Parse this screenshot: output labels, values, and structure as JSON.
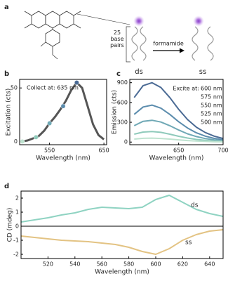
{
  "schematic": {
    "panel": "a",
    "pairs_label": [
      "25",
      "base",
      "pairs"
    ],
    "arrow_label": "formamide",
    "ds_label": "ds",
    "ss_label": "ss"
  },
  "chart_data": [
    {
      "type": "line",
      "panel": "b",
      "x_label": "Wavelength (nm)",
      "y_label": "Excitation (cts)",
      "annotations": [
        "Collect at: 635 nm"
      ],
      "xlim": [
        495,
        655
      ],
      "xticks": [
        550,
        650
      ],
      "ylim": [
        -3,
        58
      ],
      "yticks": [
        0,
        50
      ],
      "x": [
        500,
        510,
        520,
        530,
        540,
        550,
        560,
        570,
        580,
        590,
        600,
        610,
        620,
        630,
        640,
        650
      ],
      "series": [
        {
          "color": "#555555",
          "values": [
            0,
            1,
            3,
            5,
            10,
            17,
            23,
            30,
            38,
            48,
            55,
            50,
            33,
            16,
            6,
            2
          ]
        },
        {
          "style": "markers",
          "x": [
            500,
            525,
            550,
            575,
            600
          ],
          "values": [
            0,
            4,
            17,
            33,
            55
          ],
          "colors": [
            "#bfe3d0",
            "#8fcabb",
            "#6fa8b5",
            "#5b8cad",
            "#4a6a94"
          ]
        }
      ]
    },
    {
      "type": "line",
      "panel": "c",
      "x_label": "Wavelength (nm)",
      "y_label": "Emission (cts)",
      "legend_title": "Excite at:",
      "xlim": [
        595,
        700
      ],
      "xticks": [
        650,
        700
      ],
      "ylim": [
        -40,
        950
      ],
      "yticks": [
        0,
        300,
        600,
        900
      ],
      "x": [
        600,
        610,
        620,
        630,
        640,
        650,
        660,
        670,
        680,
        690,
        700
      ],
      "series": [
        {
          "name": "600 nm",
          "color": "#4a6a94",
          "values": [
            675,
            855,
            900,
            828,
            675,
            495,
            342,
            225,
            144,
            90,
            54
          ]
        },
        {
          "name": "575 nm",
          "color": "#5b8cad",
          "values": [
            420,
            532,
            560,
            515,
            420,
            308,
            213,
            140,
            90,
            56,
            34
          ]
        },
        {
          "name": "550 nm",
          "color": "#6fa8b5",
          "values": [
            248,
            314,
            330,
            304,
            248,
            182,
            125,
            83,
            53,
            33,
            20
          ]
        },
        {
          "name": "525 nm",
          "color": "#8fcabb",
          "values": [
            120,
            152,
            160,
            147,
            120,
            88,
            61,
            40,
            26,
            16,
            10
          ]
        },
        {
          "name": "500 nm",
          "color": "#bfe3d0",
          "values": [
            45,
            57,
            60,
            55,
            45,
            33,
            23,
            15,
            10,
            6,
            4
          ]
        }
      ]
    },
    {
      "type": "line",
      "panel": "d",
      "x_label": "Wavelength (nm)",
      "y_label": "CD (mdeg)",
      "annotations": [
        "ds",
        "ss"
      ],
      "zero_line": true,
      "xlim": [
        500,
        650
      ],
      "xticks": [
        520,
        540,
        560,
        580,
        600,
        620,
        640
      ],
      "ylim": [
        -2.3,
        2.5
      ],
      "yticks": [
        -2,
        -1,
        0,
        1,
        2
      ],
      "x": [
        500,
        510,
        520,
        530,
        540,
        550,
        560,
        570,
        580,
        590,
        600,
        610,
        620,
        630,
        640,
        650
      ],
      "series": [
        {
          "color": "#8fd3c2",
          "values": [
            0.3,
            0.45,
            0.6,
            0.8,
            0.95,
            1.2,
            1.35,
            1.3,
            1.25,
            1.35,
            1.9,
            2.2,
            1.7,
            1.2,
            0.9,
            0.7
          ]
        },
        {
          "color": "#e3c383",
          "values": [
            -0.7,
            -0.8,
            -0.9,
            -1.0,
            -1.05,
            -1.1,
            -1.2,
            -1.3,
            -1.5,
            -1.8,
            -2.0,
            -1.6,
            -1.0,
            -0.6,
            -0.35,
            -0.25
          ]
        }
      ]
    }
  ]
}
